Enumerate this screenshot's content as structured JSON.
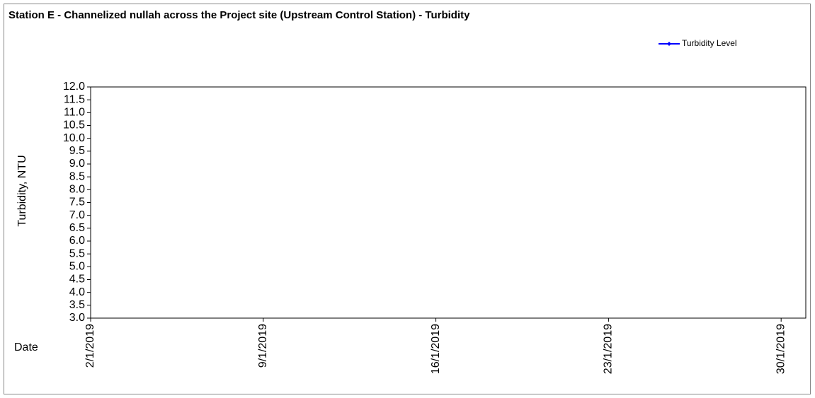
{
  "chart_data": {
    "type": "line",
    "title": "Station E - Channelized nullah across the Project site (Upstream Control Station) - Turbidity",
    "ylabel": "Turbidity, NTU",
    "xlabel": "Date",
    "x": [
      "2/1/2019",
      "9/1/2019",
      "16/1/2019",
      "23/1/2019",
      "30/1/2019"
    ],
    "series": [
      {
        "name": "Turbidity Level",
        "color": "#0000ff",
        "values": [
          null,
          null,
          null,
          null,
          null
        ]
      }
    ],
    "xlim": [
      "2/1/2019",
      "31/1/2019"
    ],
    "xticks": [
      "2/1/2019",
      "9/1/2019",
      "16/1/2019",
      "23/1/2019",
      "30/1/2019"
    ],
    "ylim": [
      3,
      12
    ],
    "yticks": [
      {
        "value": 3,
        "label": "3.0"
      },
      {
        "value": 3.5,
        "label": "3.5"
      },
      {
        "value": 4,
        "label": "4.0"
      },
      {
        "value": 4.5,
        "label": "4.5"
      },
      {
        "value": 5,
        "label": "5.0"
      },
      {
        "value": 5.5,
        "label": "5.5"
      },
      {
        "value": 6,
        "label": "6.0"
      },
      {
        "value": 6.5,
        "label": "6.5"
      },
      {
        "value": 7,
        "label": "7.0"
      },
      {
        "value": 7.5,
        "label": "7.5"
      },
      {
        "value": 8,
        "label": "8.0"
      },
      {
        "value": 8.5,
        "label": "8.5"
      },
      {
        "value": 9,
        "label": "9.0"
      },
      {
        "value": 9.5,
        "label": "9.5"
      },
      {
        "value": 10,
        "label": "10.0"
      },
      {
        "value": 10.5,
        "label": "10.5"
      },
      {
        "value": 11,
        "label": "11.0"
      },
      {
        "value": 11.5,
        "label": "11.5"
      },
      {
        "value": 12,
        "label": "12.0"
      }
    ],
    "grid": false,
    "legend": "upper right"
  }
}
